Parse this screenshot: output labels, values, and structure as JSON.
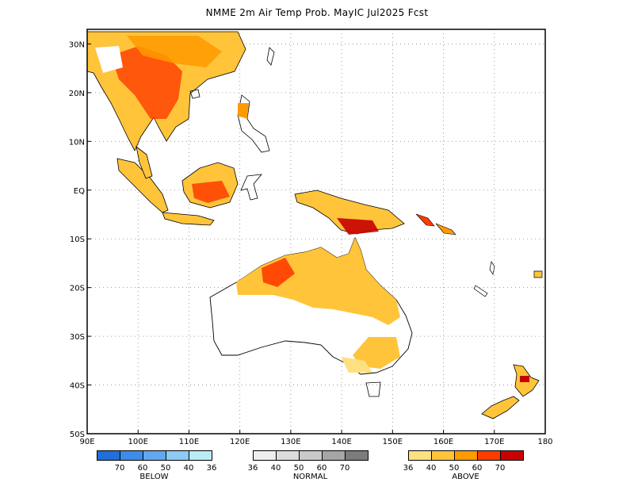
{
  "title": "NMME 2m Air Temp Prob. MayIC  Jul2025 Fcst",
  "map": {
    "lon_range": [
      90,
      180
    ],
    "lat_range": [
      -50,
      33
    ],
    "lon_ticks": [
      "90E",
      "100E",
      "110E",
      "120E",
      "130E",
      "140E",
      "150E",
      "160E",
      "170E",
      "180"
    ],
    "lat_ticks": [
      "30N",
      "20N",
      "10N",
      "EQ",
      "10S",
      "20S",
      "30S",
      "40S",
      "50S"
    ],
    "grid": "dotted"
  },
  "legend": {
    "below": {
      "label": "BELOW",
      "colors": [
        "#1f6fdc",
        "#3c8cea",
        "#62a8ef",
        "#8ccbf5",
        "#b9ecf7"
      ],
      "values": [
        "70",
        "60",
        "50",
        "40",
        "36"
      ]
    },
    "normal": {
      "label": "NORMAL",
      "colors": [
        "#eeeeee",
        "#dddddd",
        "#c9c9c9",
        "#a6a6a6",
        "#7c7c7c"
      ],
      "values": [
        "36",
        "40",
        "50",
        "60",
        "70"
      ]
    },
    "above": {
      "label": "ABOVE",
      "colors": [
        "#ffe080",
        "#ffc43a",
        "#ff9a00",
        "#ff3c00",
        "#c80000"
      ],
      "values": [
        "36",
        "40",
        "50",
        "60",
        "70"
      ]
    }
  }
}
